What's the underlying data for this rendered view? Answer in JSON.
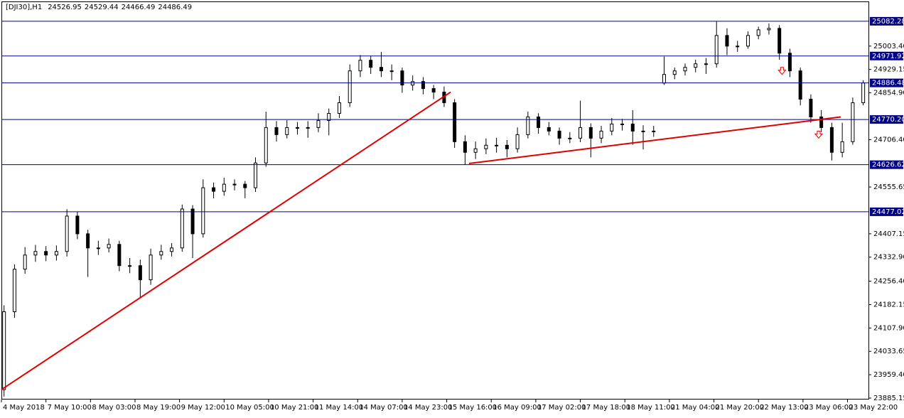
{
  "chart_data": {
    "type": "candlestick",
    "title": "[DJI30],H1",
    "header_values": [
      24526.95,
      24529.44,
      24466.49,
      24486.49
    ],
    "x": [
      1,
      5,
      9,
      13,
      17,
      21,
      25,
      29,
      33,
      37,
      41,
      45,
      49,
      53,
      57,
      61,
      65,
      69,
      73,
      77,
      81,
      85,
      89,
      93,
      97,
      101,
      105,
      109,
      113,
      117,
      121,
      125,
      129,
      133,
      137,
      141,
      145,
      149,
      153,
      157,
      161,
      165,
      169,
      173,
      177,
      181,
      185,
      189,
      193,
      197,
      201,
      205,
      209,
      213,
      217,
      221,
      225,
      229,
      233,
      237,
      241,
      245,
      249,
      253,
      257,
      261,
      265,
      269,
      273,
      277,
      281,
      285,
      289,
      293,
      297,
      301,
      305,
      309,
      313,
      317,
      321,
      325,
      329
    ],
    "open": [
      23912.15,
      24159.65,
      24294.65,
      24339.65,
      24350.9,
      24339.65,
      24350.9,
      24463.4,
      24407.15,
      24362.15,
      24362.15,
      24373.4,
      24305.9,
      24305.9,
      24260.9,
      24339.65,
      24350.9,
      24362.15,
      24485.9,
      24407.15,
      24553.4,
      24542.15,
      24564.65,
      24564.65,
      24553.4,
      24632.15,
      24744.65,
      24722.15,
      24744.65,
      24744.65,
      24744.65,
      24767.15,
      24789.65,
      24823.4,
      24924.65,
      24958.4,
      24935.9,
      24924.65,
      24924.65,
      24879.65,
      24890.9,
      24868.4,
      24857.15,
      24823.4,
      24699.65,
      24665.9,
      24677.15,
      24688.4,
      24688.4,
      24677.15,
      24722.15,
      24778.4,
      24744.65,
      24733.4,
      24710.9,
      24710.9,
      24744.65,
      24710.9,
      24733.4,
      24755.9,
      24755.9,
      24733.4,
      24733.4,
      24886.0,
      24913.4,
      24924.65,
      24935.9,
      24947.15,
      24947.15,
      25037.15,
      25003.4,
      25003.4,
      25037.15,
      25055.15,
      25059.65,
      24980.9,
      24924.65,
      24834.65,
      24778.4,
      24744.65,
      24665.9,
      24699.65,
      24823.4
    ],
    "high": [
      24180.0,
      24310.0,
      24365.0,
      24372.0,
      24368.0,
      24370.0,
      24485.0,
      24478.0,
      24420.0,
      24385.0,
      24392.0,
      24385.0,
      24330.0,
      24325.0,
      24360.0,
      24372.0,
      24378.0,
      24500.0,
      24498.0,
      24580.0,
      24570.0,
      24585.0,
      24580.0,
      24575.0,
      24650.0,
      24795.0,
      24765.0,
      24768.0,
      24762.0,
      24765.0,
      24790.0,
      24805.0,
      24845.0,
      24945.0,
      24975.0,
      24972.0,
      24985.0,
      24945.0,
      24935.0,
      24910.0,
      24905.0,
      24880.0,
      24875.0,
      24835.0,
      24720.0,
      24700.0,
      24710.0,
      24712.0,
      24705.0,
      24745.0,
      24795.0,
      24790.0,
      24762.0,
      24745.0,
      24730.0,
      24830.0,
      24758.0,
      24750.0,
      24775.0,
      24772.0,
      24800.0,
      24752.0,
      24750.0,
      24970.0,
      24935.0,
      24948.0,
      24960.0,
      24965.0,
      25082.28,
      25060.0,
      25020.0,
      25050.0,
      25065.0,
      25075.0,
      25070.0,
      24995.0,
      24935.0,
      24850.0,
      24800.0,
      24760.0,
      24760.0,
      24840.0,
      24895.0
    ],
    "low": [
      23890.0,
      24140.0,
      24280.0,
      24318.0,
      24320.0,
      24322.0,
      24335.0,
      24390.0,
      24270.0,
      24340.0,
      24348.0,
      24288.0,
      24282.0,
      24205.0,
      24245.0,
      24325.0,
      24335.0,
      24350.0,
      24330.0,
      24395.0,
      24520.0,
      24528.0,
      24545.0,
      24520.0,
      24540.0,
      24620.0,
      24700.0,
      24710.0,
      24722.0,
      24712.0,
      24730.0,
      24720.0,
      24775.0,
      24810.0,
      24905.0,
      24915.0,
      24905.0,
      24895.0,
      24855.0,
      24862.0,
      24850.0,
      24835.0,
      24810.0,
      24680.0,
      24627.0,
      24645.0,
      24660.0,
      24665.0,
      24650.0,
      24665.0,
      24710.0,
      24725.0,
      24720.0,
      24690.0,
      24695.0,
      24698.0,
      24650.0,
      24695.0,
      24720.0,
      24735.0,
      24690.0,
      24675.0,
      24715.0,
      24880.0,
      24898.0,
      24910.0,
      24920.0,
      24915.0,
      24935.0,
      24975.0,
      24985.0,
      24995.0,
      25025.0,
      25040.0,
      24960.0,
      24905.0,
      24815.0,
      24760.0,
      24730.0,
      24640.0,
      24650.0,
      24690.0,
      24815.0
    ],
    "close": [
      24159.65,
      24294.65,
      24339.65,
      24350.9,
      24339.65,
      24350.9,
      24463.4,
      24407.15,
      24362.15,
      24362.15,
      24373.4,
      24305.9,
      24305.9,
      24260.9,
      24339.65,
      24350.9,
      24362.15,
      24485.9,
      24407.15,
      24553.4,
      24542.15,
      24564.65,
      24564.65,
      24553.4,
      24632.15,
      24744.65,
      24722.15,
      24744.65,
      24744.65,
      24744.65,
      24767.15,
      24789.65,
      24823.4,
      24924.65,
      24958.4,
      24935.9,
      24924.65,
      24924.65,
      24879.65,
      24890.9,
      24868.4,
      24857.15,
      24823.4,
      24699.65,
      24665.9,
      24677.15,
      24688.4,
      24688.4,
      24677.15,
      24722.15,
      24778.4,
      24744.65,
      24733.4,
      24710.9,
      24710.9,
      24744.65,
      24710.9,
      24733.4,
      24755.9,
      24755.9,
      24733.4,
      24733.4,
      24733.4,
      24913.4,
      24924.65,
      24935.9,
      24947.15,
      24947.15,
      25037.15,
      25003.4,
      25003.4,
      25037.15,
      25055.15,
      25059.65,
      24980.9,
      24924.65,
      24834.65,
      24778.4,
      24744.65,
      24665.9,
      24699.65,
      24823.4,
      24886.48
    ],
    "xlim": [
      0,
      331
    ],
    "ylim": [
      23880.65,
      25109.15
    ],
    "xticks": [
      {
        "value": 0,
        "label": "4 May 2018"
      },
      {
        "value": 17,
        "label": "7 May 10:00"
      },
      {
        "value": 34,
        "label": "8 May 03:00"
      },
      {
        "value": 51,
        "label": "8 May 19:00"
      },
      {
        "value": 68,
        "label": "9 May 12:00"
      },
      {
        "value": 85,
        "label": "10 May 05:00"
      },
      {
        "value": 102,
        "label": "10 May 21:00"
      },
      {
        "value": 119,
        "label": "11 May 14:00"
      },
      {
        "value": 136,
        "label": "14 May 07:00"
      },
      {
        "value": 153,
        "label": "14 May 23:00"
      },
      {
        "value": 170,
        "label": "15 May 16:00"
      },
      {
        "value": 187,
        "label": "16 May 09:00"
      },
      {
        "value": 204,
        "label": "17 May 02:00"
      },
      {
        "value": 221,
        "label": "17 May 18:00"
      },
      {
        "value": 238,
        "label": "18 May 11:00"
      },
      {
        "value": 255,
        "label": "21 May 04:00"
      },
      {
        "value": 272,
        "label": "21 May 20:00"
      },
      {
        "value": 289,
        "label": "22 May 13:00"
      },
      {
        "value": 306,
        "label": "23 May 06:00"
      },
      {
        "value": 323,
        "label": "23 May 22:00"
      }
    ],
    "yticks": [
      {
        "value": 25003.4,
        "label": "25003.40"
      },
      {
        "value": 24929.15,
        "label": "24929.15"
      },
      {
        "value": 24854.9,
        "label": "24854.90"
      },
      {
        "value": 24706.4,
        "label": "24706.40"
      },
      24555.65,
      24407.15,
      {
        "value": 24332.9,
        "label": "24332.90"
      },
      {
        "value": 24256.4,
        "label": "24256.40"
      },
      24182.15,
      {
        "value": 24107.9,
        "label": "24107.90"
      },
      24033.65,
      {
        "value": 23959.4,
        "label": "23959.40"
      },
      23885.15
    ],
    "levels": [
      25082.28,
      24971.92,
      24886.48,
      {
        "value": 24770.2,
        "label": "24770.20"
      },
      24626.62,
      24477.02
    ],
    "level_color": "#00008b",
    "trendlines": [
      {
        "x": [
          0,
          171.5
        ],
        "y": [
          23912.15,
          24857.15
        ]
      },
      {
        "x": [
          178.5,
          320.4
        ],
        "y": [
          24630.4,
          24778.4
        ]
      }
    ],
    "trend_color": "#e00000",
    "arrows": {
      "x": [
        298,
        312
      ],
      "y": [
        24924.65,
        24722.15
      ]
    }
  }
}
